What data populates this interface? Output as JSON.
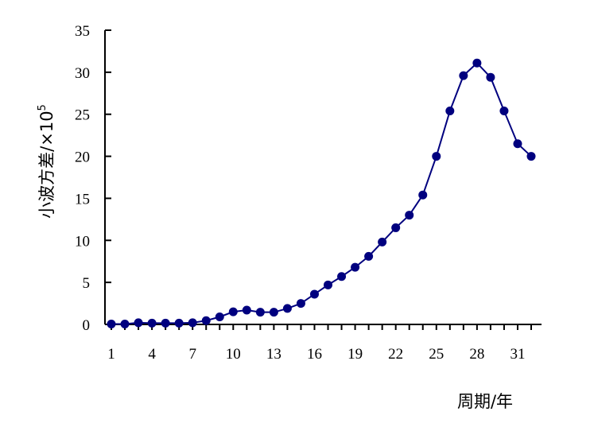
{
  "chart_data": {
    "type": "line",
    "xlabel": "周期/年",
    "ylabel": "小波方差/×10",
    "ylabel_exponent": "5",
    "xlim": [
      1,
      32
    ],
    "ylim": [
      0,
      35
    ],
    "x_ticks": [
      1,
      4,
      7,
      10,
      13,
      16,
      19,
      22,
      25,
      28,
      31
    ],
    "y_ticks": [
      0,
      5,
      10,
      15,
      20,
      25,
      30,
      35
    ],
    "grid": false,
    "line_color": "#00007f",
    "series": [
      {
        "x": [
          1,
          2,
          3,
          4,
          5,
          6,
          7,
          8,
          9,
          10,
          11,
          12,
          13,
          14,
          15,
          16,
          17,
          18,
          19,
          20,
          21,
          22,
          23,
          24,
          25,
          26,
          27,
          28,
          29,
          30,
          31,
          32
        ],
        "y": [
          0.05,
          0.05,
          0.2,
          0.15,
          0.15,
          0.15,
          0.2,
          0.45,
          0.9,
          1.5,
          1.7,
          1.45,
          1.45,
          1.9,
          2.5,
          3.6,
          4.7,
          5.7,
          6.8,
          8.1,
          9.8,
          11.5,
          13.0,
          15.4,
          20.0,
          25.4,
          29.6,
          31.1,
          29.4,
          25.4,
          21.5,
          20.0
        ]
      }
    ]
  }
}
